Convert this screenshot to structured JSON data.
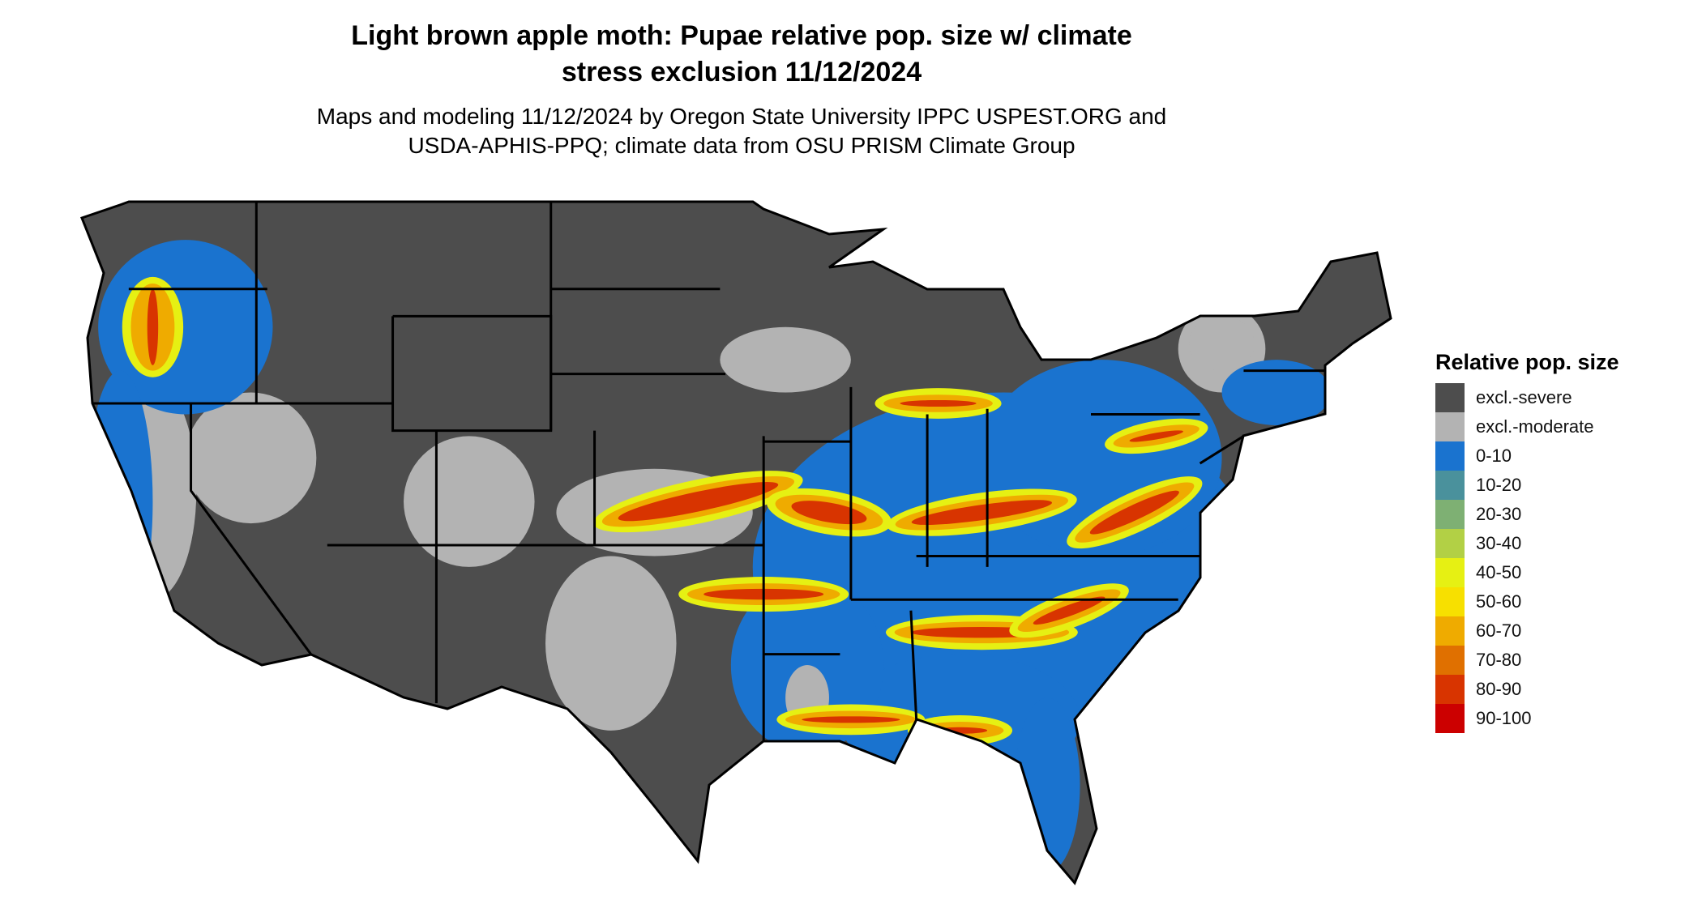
{
  "header": {
    "title_line1": "Light brown apple moth: Pupae relative pop. size w/ climate",
    "title_line2": "stress exclusion 11/12/2024",
    "subtitle_line1": "Maps and modeling 11/12/2024 by Oregon State University IPPC USPEST.ORG and",
    "subtitle_line2": "USDA-APHIS-PPQ; climate data from OSU PRISM Climate Group"
  },
  "chart_data": {
    "type": "heatmap",
    "title": "Light brown apple moth: Pupae relative pop. size w/ climate stress exclusion 11/12/2024",
    "region": "Contiguous United States",
    "legend": {
      "title": "Relative pop. size",
      "placement": "right",
      "entries": [
        {
          "label": "excl.-severe",
          "color": "#4d4d4d"
        },
        {
          "label": "excl.-moderate",
          "color": "#b3b3b3"
        },
        {
          "label": "0-10",
          "color": "#1a73cf"
        },
        {
          "label": "10-20",
          "color": "#4a919c"
        },
        {
          "label": "20-30",
          "color": "#7eb073"
        },
        {
          "label": "30-40",
          "color": "#b2d045"
        },
        {
          "label": "40-50",
          "color": "#e6f013"
        },
        {
          "label": "50-60",
          "color": "#f7e000"
        },
        {
          "label": "60-70",
          "color": "#efab00"
        },
        {
          "label": "70-80",
          "color": "#e07000"
        },
        {
          "label": "80-90",
          "color": "#d83400"
        },
        {
          "label": "90-100",
          "color": "#cc0000"
        }
      ]
    }
  }
}
